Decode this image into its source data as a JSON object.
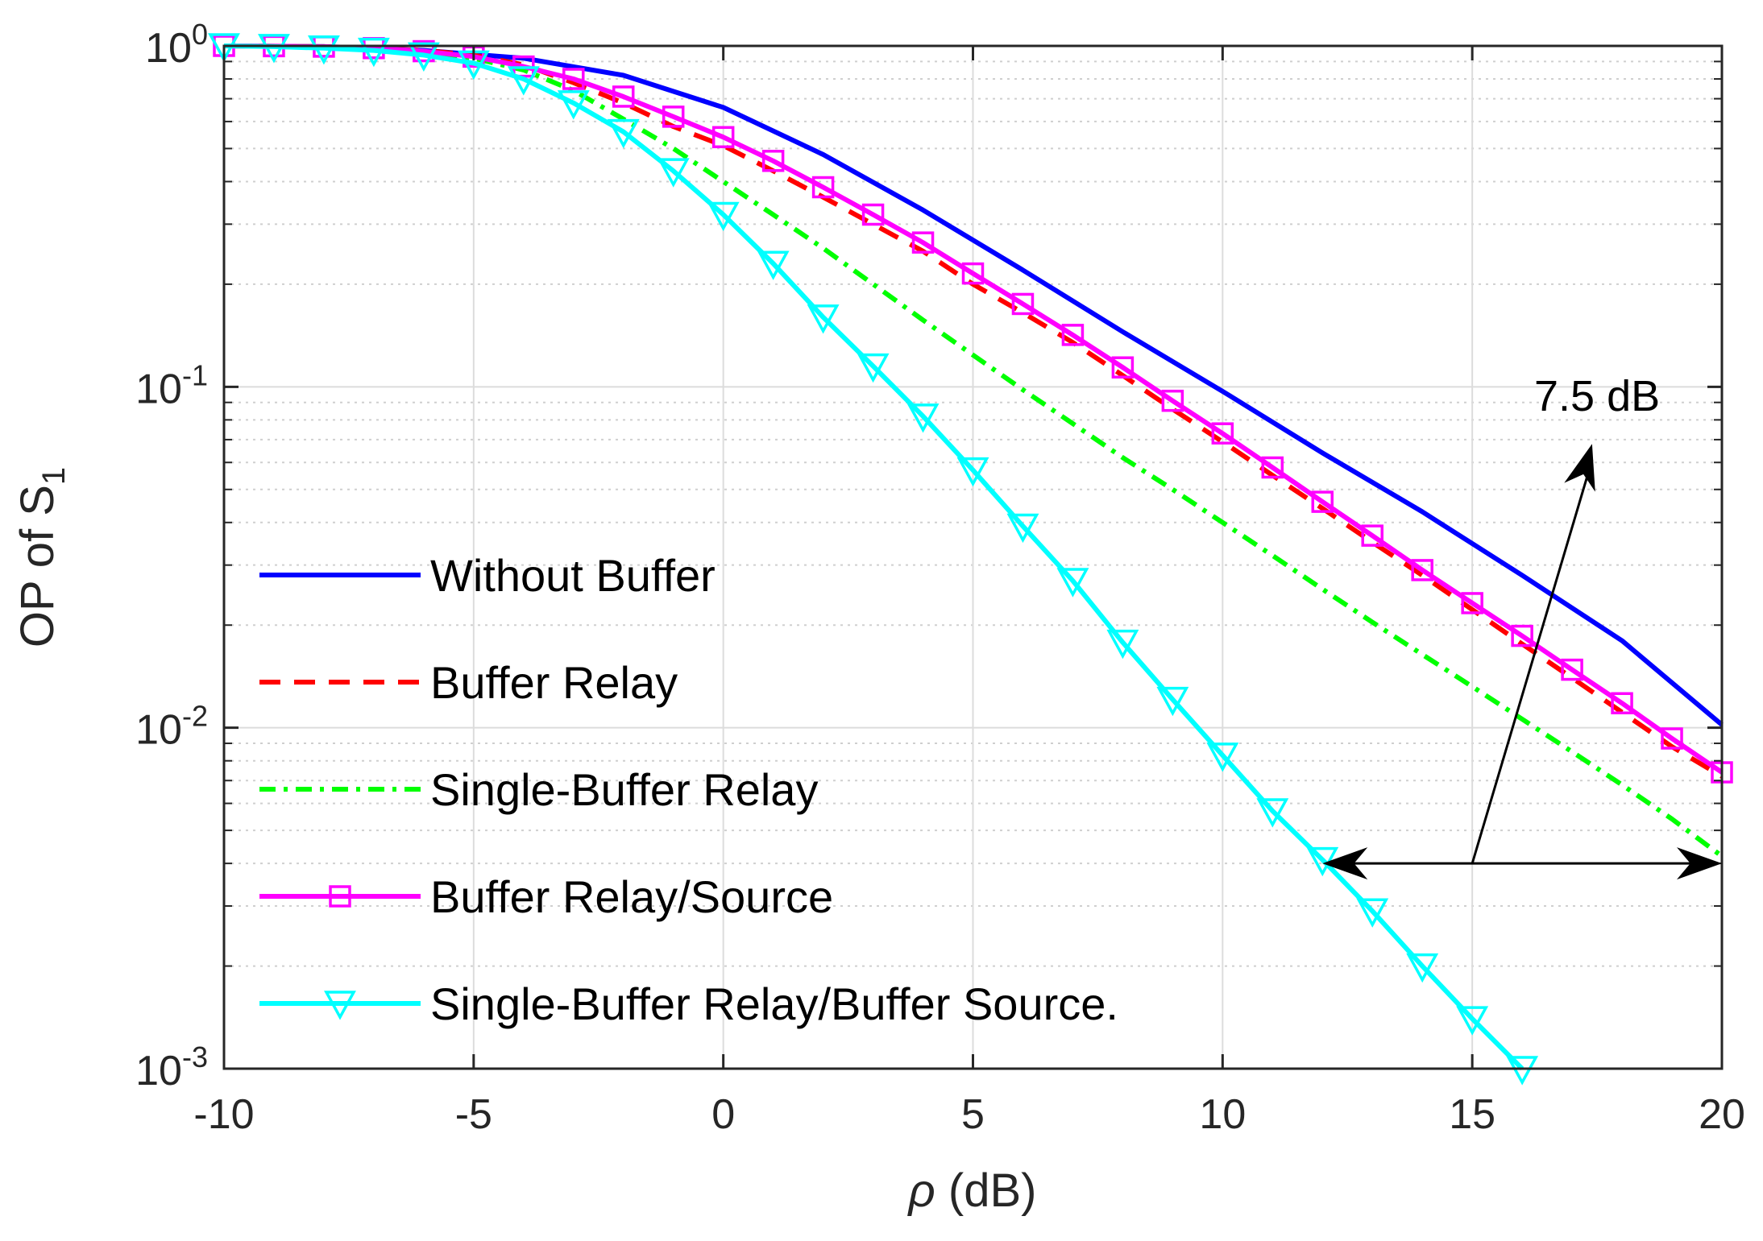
{
  "chart_data": {
    "type": "line",
    "title": "",
    "xlabel_symbol": "ρ",
    "xlabel_unit": " (dB)",
    "ylabel_main": "OP of S",
    "ylabel_sub": "1",
    "xlim": [
      -10,
      20
    ],
    "ylim": [
      0.001,
      1
    ],
    "yscale": "log",
    "grid": true,
    "x_ticks": [
      -10,
      -5,
      0,
      5,
      10,
      15,
      20
    ],
    "x_tick_labels": [
      "-10",
      "-5",
      "0",
      "5",
      "10",
      "15",
      "20"
    ],
    "y_ticks": [
      {
        "value": 1,
        "base": "10",
        "exp": "0"
      },
      {
        "value": 0.1,
        "base": "10",
        "exp": "-1"
      },
      {
        "value": 0.01,
        "base": "10",
        "exp": "-2"
      },
      {
        "value": 0.001,
        "base": "10",
        "exp": "-3"
      }
    ],
    "legend_position": "lower-left",
    "series": [
      {
        "name": "Without Buffer",
        "color": "#0000ff",
        "style": "solid",
        "marker": "none",
        "x": [
          -10,
          -8,
          -6,
          -4,
          -2,
          0,
          2,
          4,
          6,
          8,
          10,
          12,
          14,
          16,
          18,
          20
        ],
        "values": [
          1.0,
          0.995,
          0.97,
          0.92,
          0.82,
          0.66,
          0.48,
          0.33,
          0.22,
          0.145,
          0.097,
          0.064,
          0.043,
          0.028,
          0.018,
          0.0102
        ]
      },
      {
        "name": "Buffer Relay",
        "color": "#ff0000",
        "style": "dashed",
        "marker": "none",
        "x": [
          -10,
          -8,
          -6,
          -5,
          -4,
          -3,
          -2,
          -1,
          0,
          1,
          2,
          3,
          4,
          5,
          6,
          7,
          8,
          9,
          10,
          11,
          12,
          13,
          14,
          15,
          16,
          17,
          18,
          19,
          20
        ],
        "values": [
          1.0,
          0.995,
          0.97,
          0.94,
          0.88,
          0.78,
          0.68,
          0.58,
          0.51,
          0.43,
          0.36,
          0.3,
          0.25,
          0.2,
          0.165,
          0.135,
          0.108,
          0.086,
          0.069,
          0.055,
          0.044,
          0.035,
          0.028,
          0.0222,
          0.0176,
          0.014,
          0.0111,
          0.0088,
          0.0072
        ]
      },
      {
        "name": "Single-Buffer Relay",
        "color": "#00ff00",
        "style": "dashdot",
        "marker": "none",
        "x": [
          -10,
          -8,
          -6,
          -5,
          -4,
          -3,
          -2,
          -1,
          0,
          1,
          2,
          3,
          4,
          5,
          6,
          7,
          8,
          9,
          10,
          11,
          12,
          13,
          14,
          15,
          16,
          17,
          18,
          19,
          20
        ],
        "values": [
          1.0,
          0.995,
          0.96,
          0.92,
          0.85,
          0.74,
          0.61,
          0.5,
          0.4,
          0.32,
          0.255,
          0.2,
          0.157,
          0.124,
          0.098,
          0.078,
          0.062,
          0.05,
          0.04,
          0.032,
          0.0255,
          0.0204,
          0.0164,
          0.0132,
          0.0106,
          0.0085,
          0.0068,
          0.0054,
          0.0042
        ]
      },
      {
        "name": "Buffer Relay/Source",
        "color": "#ff00ff",
        "style": "solid",
        "marker": "square",
        "x": [
          -10,
          -9,
          -8,
          -7,
          -6,
          -5,
          -4,
          -3,
          -2,
          -1,
          0,
          1,
          2,
          3,
          4,
          5,
          6,
          7,
          8,
          9,
          10,
          11,
          12,
          13,
          14,
          15,
          16,
          17,
          18,
          19,
          20
        ],
        "values": [
          1.0,
          0.998,
          0.995,
          0.985,
          0.965,
          0.93,
          0.87,
          0.8,
          0.71,
          0.62,
          0.54,
          0.46,
          0.385,
          0.32,
          0.265,
          0.215,
          0.175,
          0.142,
          0.114,
          0.091,
          0.073,
          0.058,
          0.046,
          0.0366,
          0.029,
          0.0232,
          0.0186,
          0.0148,
          0.0118,
          0.0093,
          0.0074
        ]
      },
      {
        "name": "Single-Buffer Relay/Buffer Source.",
        "color": "#00ffff",
        "style": "solid",
        "marker": "triangle-down",
        "x": [
          -10,
          -9,
          -8,
          -7,
          -6,
          -5,
          -4,
          -3,
          -2,
          -1,
          0,
          1,
          2,
          3,
          4,
          5,
          6,
          7,
          8,
          9,
          10,
          11,
          12,
          13,
          14,
          15,
          16
        ],
        "values": [
          1.0,
          0.995,
          0.985,
          0.97,
          0.94,
          0.89,
          0.8,
          0.68,
          0.56,
          0.43,
          0.32,
          0.23,
          0.16,
          0.115,
          0.082,
          0.057,
          0.039,
          0.027,
          0.0178,
          0.0121,
          0.0083,
          0.0057,
          0.0041,
          0.0029,
          0.002,
          0.0014,
          0.001
        ]
      }
    ],
    "annotations": [
      {
        "type": "double-arrow",
        "x1": 12,
        "x2": 20,
        "y": 0.004
      },
      {
        "type": "arrow",
        "from_x": 15,
        "from_y": 0.004,
        "to_x": 17.4,
        "to_y": 0.068
      },
      {
        "type": "text",
        "text": "7.5 dB",
        "x": 17.5,
        "y": 0.085
      }
    ]
  }
}
